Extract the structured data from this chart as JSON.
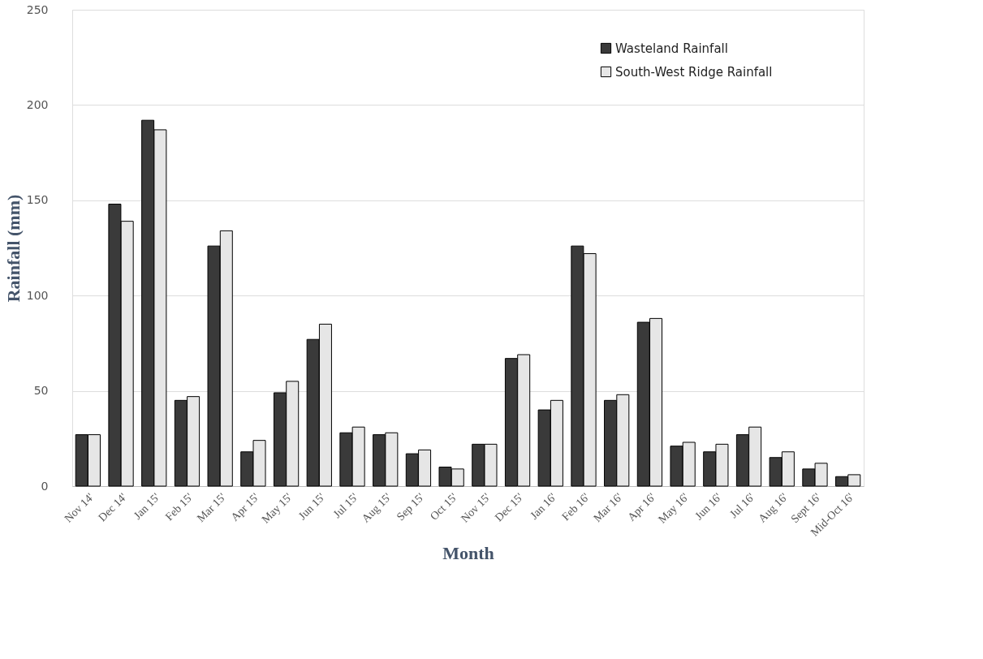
{
  "chart_data": {
    "type": "bar",
    "xlabel": "Month",
    "ylabel": "Rainfall  (mm)",
    "categories": [
      "Nov 14'",
      "Dec 14'",
      "Jan 15'",
      "Feb 15'",
      "Mar 15'",
      "Apr 15'",
      "May 15'",
      "Jun 15'",
      "Jul 15'",
      "Aug 15'",
      "Sep 15'",
      "Oct 15'",
      "Nov 15'",
      "Dec 15'",
      "Jan 16'",
      "Feb 16'",
      "Mar 16'",
      "Apr 16'",
      "May 16'",
      "Jun 16'",
      "Jul 16'",
      "Aug 16'",
      "Sept 16'",
      "Mid-Oct 16'"
    ],
    "series": [
      {
        "name": "Wasteland Rainfall",
        "color": "#3a3a3a",
        "values": [
          27,
          148,
          192,
          45,
          126,
          18,
          49,
          77,
          28,
          27,
          17,
          10,
          22,
          67,
          40,
          126,
          45,
          86,
          21,
          18,
          27,
          15,
          9,
          5
        ]
      },
      {
        "name": "South-West Ridge Rainfall",
        "color": "#e6e6e6",
        "values": [
          27,
          139,
          187,
          47,
          134,
          24,
          55,
          85,
          31,
          28,
          19,
          9,
          22,
          69,
          45,
          122,
          48,
          88,
          23,
          22,
          31,
          18,
          12,
          6
        ]
      }
    ],
    "ylim": [
      0,
      250
    ],
    "yticks": [
      0,
      50,
      100,
      150,
      200,
      250
    ],
    "grid": "y",
    "legend": "top right"
  }
}
